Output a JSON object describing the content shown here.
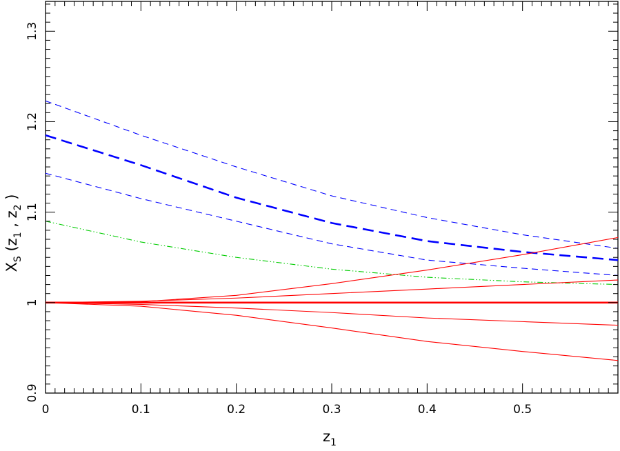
{
  "chart_data": {
    "type": "line",
    "xlabel": {
      "main": "z",
      "sub": "1"
    },
    "ylabel": {
      "main": "X",
      "sub_s": "S",
      "open": " (z",
      "sub_1": "1",
      "comma": " , z",
      "sub_2": "2",
      "close": " )"
    },
    "xlim": [
      0,
      0.6
    ],
    "ylim": [
      0.9,
      1.333
    ],
    "xticks": [
      {
        "value": 0,
        "label": "0"
      },
      {
        "value": 0.1,
        "label": "0.1"
      },
      {
        "value": 0.2,
        "label": "0.2"
      },
      {
        "value": 0.3,
        "label": "0.3"
      },
      {
        "value": 0.4,
        "label": "0.4"
      },
      {
        "value": 0.5,
        "label": "0.5"
      }
    ],
    "yticks": [
      {
        "value": 0.9,
        "label": "0.9"
      },
      {
        "value": 1.0,
        "label": "1"
      },
      {
        "value": 1.1,
        "label": "1.1"
      },
      {
        "value": 1.2,
        "label": "1.2"
      },
      {
        "value": 1.3,
        "label": "1.3"
      }
    ],
    "grid": false,
    "legend": "none",
    "series": [
      {
        "color": "#0000ff",
        "style": "dashed",
        "weight": "thin",
        "x": [
          0,
          0.1,
          0.2,
          0.3,
          0.4,
          0.5,
          0.6
        ],
        "y": [
          1.223,
          1.185,
          1.15,
          1.118,
          1.094,
          1.075,
          1.06
        ]
      },
      {
        "color": "#0000ff",
        "style": "dashed",
        "weight": "thick",
        "x": [
          0,
          0.1,
          0.2,
          0.3,
          0.4,
          0.5,
          0.6
        ],
        "y": [
          1.185,
          1.152,
          1.116,
          1.088,
          1.068,
          1.056,
          1.047
        ]
      },
      {
        "color": "#0000ff",
        "style": "dashed",
        "weight": "thin",
        "x": [
          0,
          0.1,
          0.2,
          0.3,
          0.4,
          0.5,
          0.6
        ],
        "y": [
          1.143,
          1.115,
          1.09,
          1.065,
          1.047,
          1.038,
          1.03
        ]
      },
      {
        "color": "#00cc00",
        "style": "dash-dot-dot",
        "weight": "thin",
        "x": [
          0,
          0.1,
          0.2,
          0.3,
          0.4,
          0.5,
          0.6
        ],
        "y": [
          1.09,
          1.067,
          1.05,
          1.037,
          1.028,
          1.023,
          1.02
        ]
      },
      {
        "color": "#ff0000",
        "style": "solid",
        "weight": "thin",
        "x": [
          0,
          0.1,
          0.2,
          0.3,
          0.4,
          0.5,
          0.6
        ],
        "y": [
          1.0,
          1.001,
          1.008,
          1.021,
          1.036,
          1.053,
          1.072
        ]
      },
      {
        "color": "#ff0000",
        "style": "solid",
        "weight": "thin",
        "x": [
          0,
          0.1,
          0.2,
          0.3,
          0.4,
          0.5,
          0.6
        ],
        "y": [
          1.0,
          1.0015,
          1.005,
          1.01,
          1.015,
          1.02,
          1.025
        ]
      },
      {
        "color": "#ff0000",
        "style": "solid",
        "weight": "thick",
        "x": [
          0,
          0.6
        ],
        "y": [
          1.0,
          1.0
        ]
      },
      {
        "color": "#ff0000",
        "style": "solid",
        "weight": "thin",
        "x": [
          0,
          0.1,
          0.2,
          0.3,
          0.4,
          0.5,
          0.6
        ],
        "y": [
          1.0,
          0.998,
          0.994,
          0.989,
          0.983,
          0.979,
          0.975
        ]
      },
      {
        "color": "#ff0000",
        "style": "solid",
        "weight": "thin",
        "x": [
          0,
          0.1,
          0.2,
          0.3,
          0.4,
          0.5,
          0.6
        ],
        "y": [
          1.0,
          0.996,
          0.986,
          0.972,
          0.957,
          0.946,
          0.936
        ]
      }
    ]
  }
}
